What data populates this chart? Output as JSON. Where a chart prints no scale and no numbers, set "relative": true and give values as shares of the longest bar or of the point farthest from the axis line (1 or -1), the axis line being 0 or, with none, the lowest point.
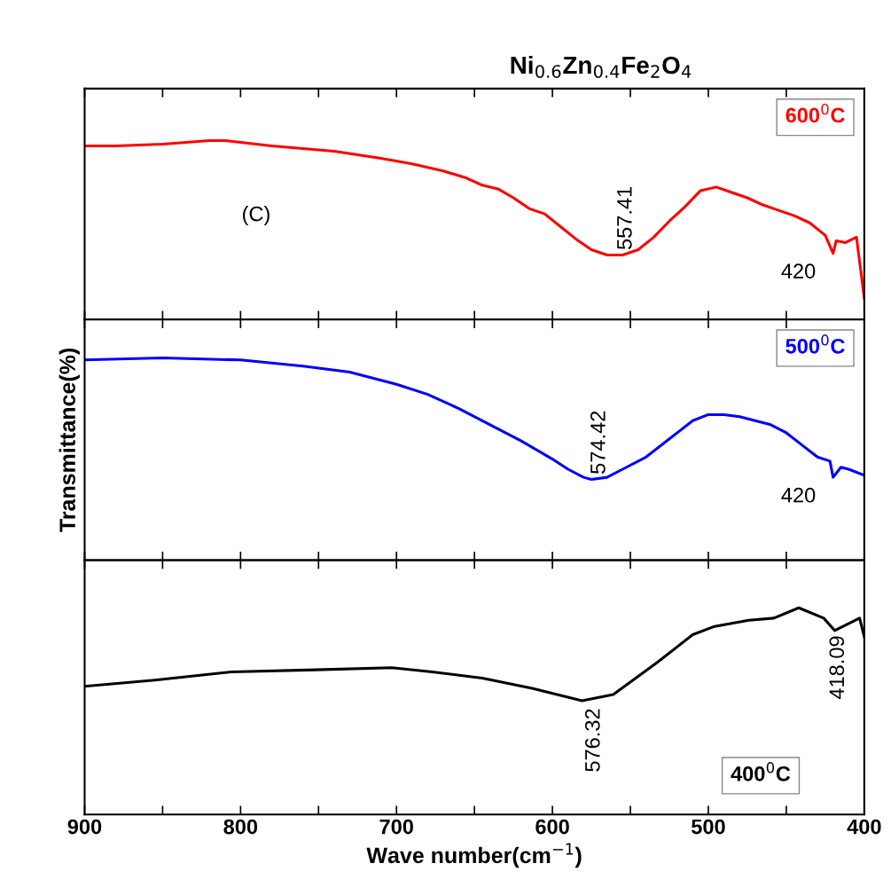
{
  "chart_data": [
    {
      "type": "line",
      "title": "Ni$_{0.6}$Zn$_{0.4}$Fe$_{2}$O$_{4}$",
      "relative": true,
      "xlim": [
        900,
        400
      ],
      "xticks": [
        900,
        {
          "value": 850,
          "label": null
        },
        800,
        {
          "value": 750,
          "label": null
        },
        700,
        {
          "value": 650,
          "label": null
        },
        600,
        {
          "value": 550,
          "label": null
        },
        500,
        {
          "value": 450,
          "label": null
        },
        400
      ],
      "tick_labels": false,
      "legend": "top right",
      "grid": false,
      "series": [
        {
          "name": "600$^{0}$C",
          "color": "#ff0000",
          "x": [
            900,
            880,
            850,
            820,
            810,
            780,
            740,
            710,
            690,
            670,
            655,
            645,
            635,
            625,
            615,
            605,
            595,
            585,
            575,
            565,
            555,
            545,
            535,
            525,
            515,
            505,
            495,
            485,
            475,
            465,
            455,
            445,
            435,
            425,
            420,
            418,
            412,
            405,
            400
          ],
          "values": [
            0.97,
            0.97,
            0.98,
            1.0,
            1.0,
            0.97,
            0.94,
            0.9,
            0.87,
            0.83,
            0.79,
            0.75,
            0.73,
            0.68,
            0.62,
            0.59,
            0.52,
            0.45,
            0.39,
            0.36,
            0.36,
            0.39,
            0.46,
            0.55,
            0.63,
            0.72,
            0.74,
            0.71,
            0.68,
            0.64,
            0.61,
            0.58,
            0.54,
            0.47,
            0.37,
            0.44,
            0.43,
            0.46,
            0.12
          ]
        }
      ],
      "annotations": [
        "(C)",
        {
          "text": "557.41",
          "x": 557.41,
          "y": 0.36
        },
        {
          "text": "420",
          "x": 420,
          "y": 0.37
        }
      ]
    },
    {
      "type": "line",
      "ylabel": "Transmittance(%)",
      "relative": true,
      "xlim": [
        900,
        400
      ],
      "xticks": [
        900,
        {
          "value": 850,
          "label": null
        },
        800,
        {
          "value": 750,
          "label": null
        },
        700,
        {
          "value": 650,
          "label": null
        },
        600,
        {
          "value": 550,
          "label": null
        },
        500,
        {
          "value": 450,
          "label": null
        },
        400
      ],
      "tick_labels": false,
      "legend": "top right",
      "grid": false,
      "series": [
        {
          "name": "500$^{0}$C",
          "color": "#0000ff",
          "x": [
            900,
            850,
            800,
            760,
            730,
            700,
            680,
            660,
            640,
            620,
            600,
            590,
            580,
            575,
            565,
            555,
            540,
            525,
            510,
            500,
            490,
            480,
            470,
            460,
            450,
            440,
            430,
            422,
            420,
            415,
            410,
            400
          ],
          "values": [
            0.99,
            1.0,
            0.99,
            0.96,
            0.93,
            0.87,
            0.82,
            0.75,
            0.67,
            0.59,
            0.5,
            0.45,
            0.41,
            0.4,
            0.41,
            0.45,
            0.51,
            0.6,
            0.69,
            0.72,
            0.72,
            0.71,
            0.69,
            0.67,
            0.63,
            0.57,
            0.51,
            0.49,
            0.41,
            0.46,
            0.45,
            0.42
          ]
        }
      ],
      "annotations": [
        {
          "text": "574.42",
          "x": 574.42,
          "y": 0.4
        },
        {
          "text": "420",
          "x": 420,
          "y": 0.41
        }
      ]
    },
    {
      "type": "line",
      "xlabel": "Wave number(cm$^{−1}$)",
      "relative": true,
      "xlim": [
        900,
        400
      ],
      "xticks": [
        900,
        {
          "value": 850,
          "label": null
        },
        800,
        {
          "value": 750,
          "label": null
        },
        700,
        {
          "value": 650,
          "label": null
        },
        600,
        {
          "value": 550,
          "label": null
        },
        500,
        {
          "value": 450,
          "label": null
        },
        400
      ],
      "tick_labels": "x",
      "legend": "bottom right",
      "grid": false,
      "series": [
        {
          "name": "400$^{0}$C",
          "color": "#000000",
          "x": [
            900,
            855,
            806,
            752,
            703,
            677,
            645,
            613,
            581,
            561,
            532,
            510,
            496,
            474,
            458,
            442,
            426,
            419,
            403,
            400
          ],
          "values": [
            0.62,
            0.65,
            0.69,
            0.7,
            0.71,
            0.69,
            0.66,
            0.61,
            0.55,
            0.58,
            0.74,
            0.87,
            0.91,
            0.94,
            0.95,
            1.0,
            0.95,
            0.89,
            0.95,
            0.86
          ]
        }
      ],
      "annotations": [
        {
          "text": "576.32",
          "x": 576.32,
          "y": 0.55
        },
        {
          "text": "418.09",
          "x": 418.09,
          "y": 0.89
        }
      ]
    }
  ]
}
